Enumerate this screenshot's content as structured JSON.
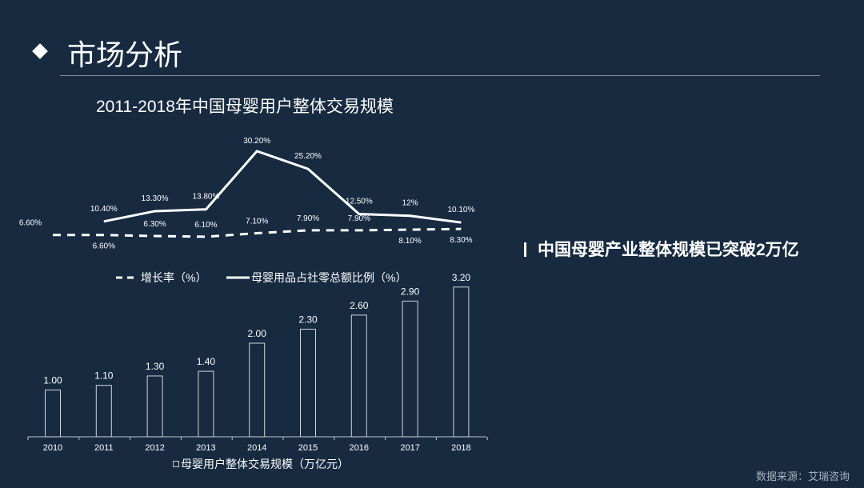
{
  "header": {
    "title": "市场分析",
    "icon": "diamond-bullet"
  },
  "headline": "中国母婴产业整体规模已突破2万亿",
  "source": "数据来源：艾瑞咨询",
  "colors": {
    "background": "#172a40",
    "foreground": "#ffffff"
  },
  "chart_data": {
    "title": "2011-2018年中国母婴用户整体交易规模",
    "categories": [
      "2010",
      "2011",
      "2012",
      "2013",
      "2014",
      "2015",
      "2016",
      "2017",
      "2018"
    ],
    "line_chart": {
      "type": "line",
      "legend_placement": "bottom",
      "series": [
        {
          "name": "增长率（%）",
          "style": "dashed",
          "values": [
            6.6,
            6.6,
            6.3,
            6.1,
            7.1,
            7.9,
            7.9,
            8.1,
            8.3
          ],
          "labels": [
            "6.60%",
            "6.60%",
            "6.30%",
            "6.10%",
            "7.10%",
            "7.90%",
            "7.90%",
            "8.10%",
            "8.30%"
          ]
        },
        {
          "name": "母婴用品占社零总额比例（%）",
          "style": "solid",
          "values": [
            null,
            10.4,
            13.3,
            13.8,
            30.2,
            25.2,
            12.5,
            12,
            10.1
          ],
          "labels": [
            null,
            "10.40%",
            "13.30%",
            "13.80%",
            "30.20%",
            "25.20%",
            "12.50%",
            "12%",
            "10.10%"
          ]
        }
      ]
    },
    "bar_chart": {
      "type": "bar",
      "legend_placement": "bottom",
      "series": [
        {
          "name": "母婴用户整体交易规模（万亿元）",
          "values": [
            1.0,
            1.1,
            1.3,
            1.4,
            2.0,
            2.3,
            2.6,
            2.9,
            3.2
          ],
          "labels": [
            "1.00",
            "1.10",
            "1.30",
            "1.40",
            "2.00",
            "2.30",
            "2.60",
            "2.90",
            "3.20"
          ]
        }
      ],
      "grid": false
    }
  }
}
